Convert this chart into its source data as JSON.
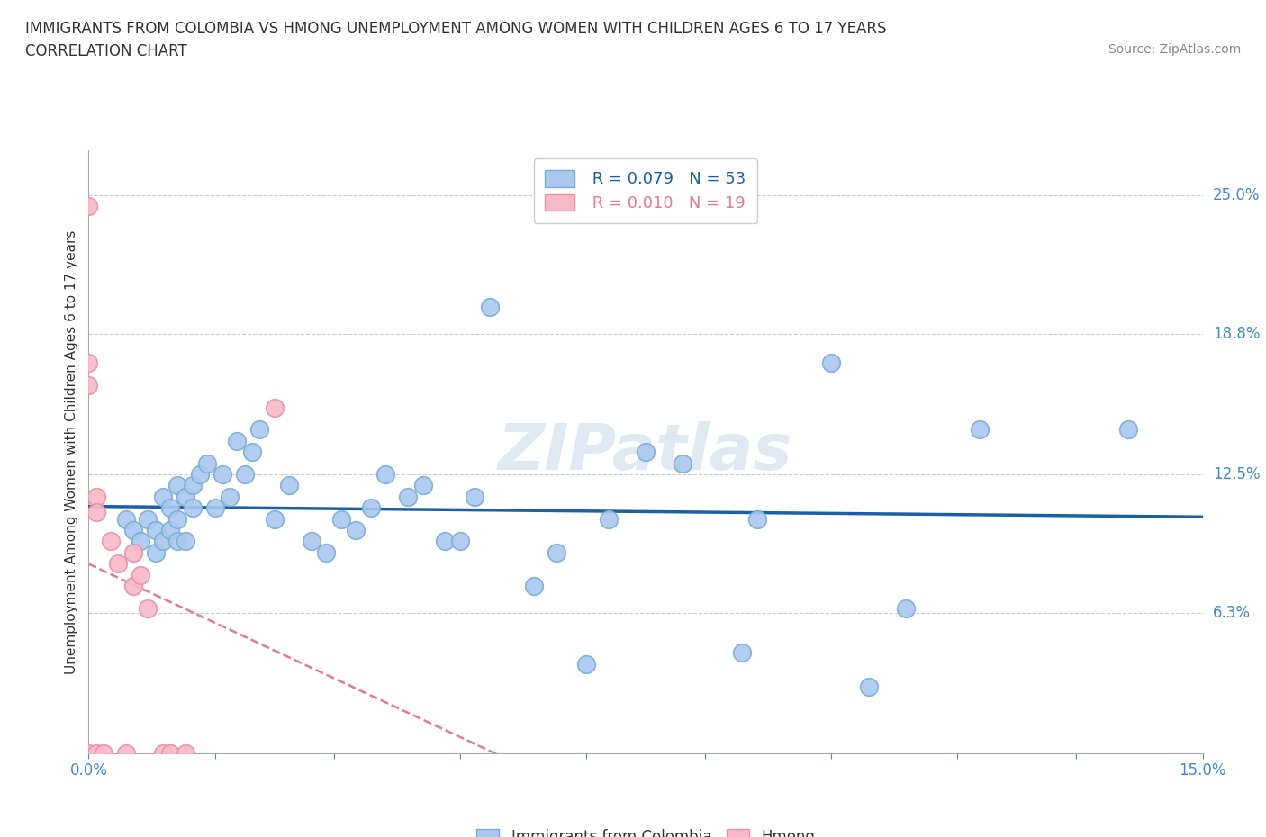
{
  "title_line1": "IMMIGRANTS FROM COLOMBIA VS HMONG UNEMPLOYMENT AMONG WOMEN WITH CHILDREN AGES 6 TO 17 YEARS",
  "title_line2": "CORRELATION CHART",
  "source": "Source: ZipAtlas.com",
  "ylabel": "Unemployment Among Women with Children Ages 6 to 17 years",
  "xlim": [
    0.0,
    0.15
  ],
  "ylim": [
    0.0,
    0.27
  ],
  "xticks": [
    0.0,
    0.017,
    0.033,
    0.05,
    0.067,
    0.083,
    0.1,
    0.117,
    0.133,
    0.15
  ],
  "xticklabels_show": {
    "0.0": "0.0%",
    "0.15": "15.0%"
  },
  "yticks": [
    0.0,
    0.063,
    0.125,
    0.188,
    0.25
  ],
  "yticklabels": [
    "",
    "6.3%",
    "12.5%",
    "18.8%",
    "25.0%"
  ],
  "grid_color": "#cccccc",
  "background_color": "#ffffff",
  "colombia_color": "#aac8f0",
  "colombia_edge": "#7aadd4",
  "hmong_color": "#f8b8c8",
  "hmong_edge": "#e890a8",
  "colombia_line_color": "#1a5fa8",
  "hmong_line_color": "#e87890",
  "legend_r_colombia": "R = 0.079",
  "legend_n_colombia": "N = 53",
  "legend_r_hmong": "R = 0.010",
  "legend_n_hmong": "N = 19",
  "colombia_x": [
    0.005,
    0.006,
    0.007,
    0.008,
    0.009,
    0.009,
    0.01,
    0.01,
    0.011,
    0.011,
    0.012,
    0.012,
    0.012,
    0.013,
    0.013,
    0.014,
    0.014,
    0.015,
    0.016,
    0.017,
    0.018,
    0.019,
    0.02,
    0.021,
    0.022,
    0.023,
    0.025,
    0.027,
    0.03,
    0.032,
    0.034,
    0.036,
    0.038,
    0.04,
    0.043,
    0.045,
    0.048,
    0.05,
    0.052,
    0.054,
    0.06,
    0.063,
    0.067,
    0.07,
    0.075,
    0.08,
    0.088,
    0.09,
    0.1,
    0.105,
    0.11,
    0.12,
    0.14
  ],
  "colombia_y": [
    0.105,
    0.1,
    0.095,
    0.105,
    0.1,
    0.09,
    0.115,
    0.095,
    0.11,
    0.1,
    0.12,
    0.105,
    0.095,
    0.115,
    0.095,
    0.12,
    0.11,
    0.125,
    0.13,
    0.11,
    0.125,
    0.115,
    0.14,
    0.125,
    0.135,
    0.145,
    0.105,
    0.12,
    0.095,
    0.09,
    0.105,
    0.1,
    0.11,
    0.125,
    0.115,
    0.12,
    0.095,
    0.095,
    0.115,
    0.2,
    0.075,
    0.09,
    0.04,
    0.105,
    0.135,
    0.13,
    0.045,
    0.105,
    0.175,
    0.03,
    0.065,
    0.145,
    0.145
  ],
  "hmong_x": [
    0.0,
    0.0,
    0.0,
    0.0,
    0.001,
    0.001,
    0.001,
    0.002,
    0.003,
    0.004,
    0.005,
    0.006,
    0.006,
    0.007,
    0.008,
    0.01,
    0.011,
    0.013,
    0.025
  ],
  "hmong_y": [
    0.245,
    0.175,
    0.165,
    0.0,
    0.115,
    0.108,
    0.0,
    0.0,
    0.095,
    0.085,
    0.0,
    0.09,
    0.075,
    0.08,
    0.065,
    0.0,
    0.0,
    0.0,
    0.155
  ]
}
